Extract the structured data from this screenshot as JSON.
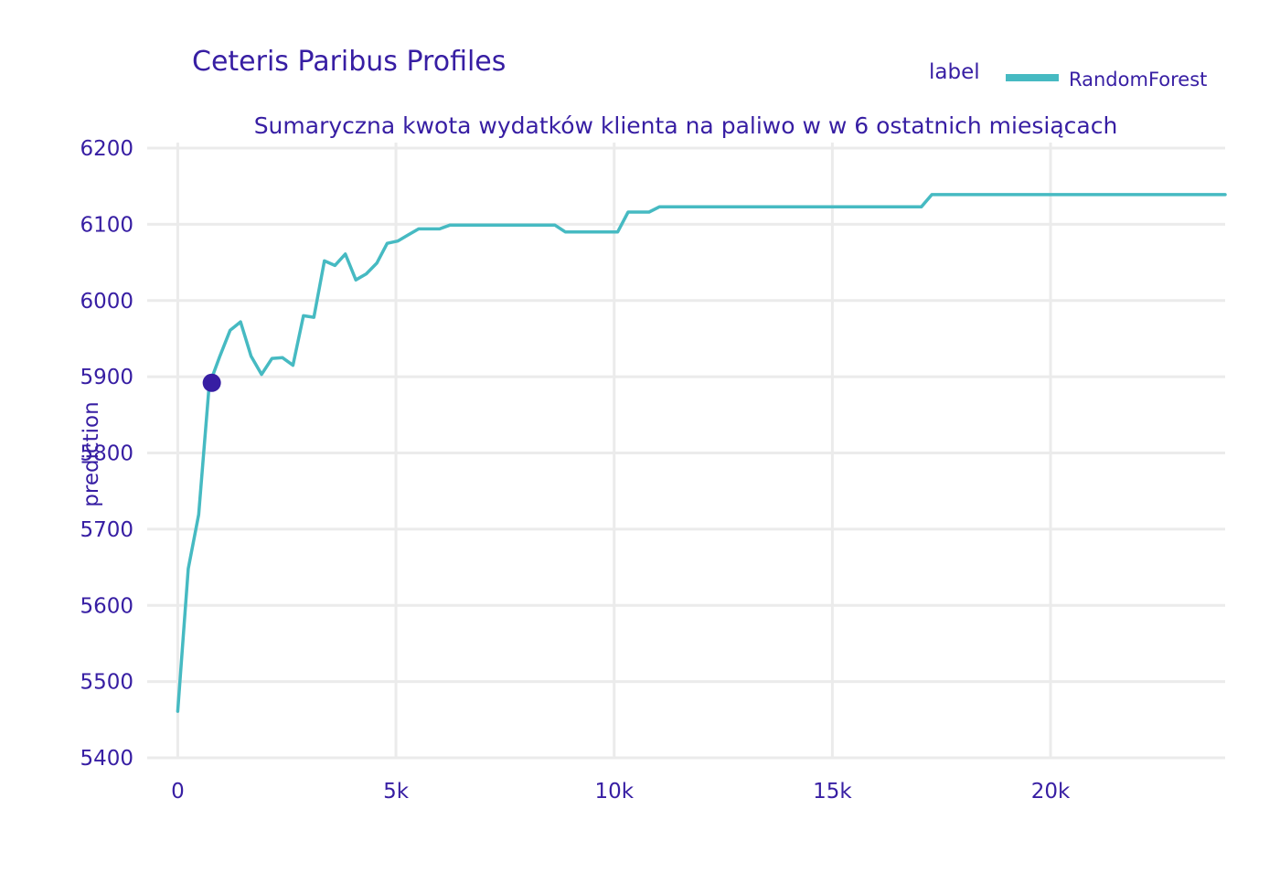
{
  "chart_data": {
    "type": "line",
    "title": "Ceteris Paribus Profiles",
    "subtitle": "Sumaryczna kwota wydatków klienta na paliwo w w 6 ostatnich miesiącach",
    "ylabel": "prediction",
    "xlabel": "",
    "xlim": [
      -700,
      24000
    ],
    "ylim": [
      5400,
      6200
    ],
    "x_ticks": [
      {
        "value": 0,
        "label": "0"
      },
      {
        "value": 5000,
        "label": "5k"
      },
      {
        "value": 10000,
        "label": "10k"
      },
      {
        "value": 15000,
        "label": "15k"
      },
      {
        "value": 20000,
        "label": "20k"
      }
    ],
    "y_ticks": [
      {
        "value": 5400,
        "label": "5400"
      },
      {
        "value": 5500,
        "label": "5500"
      },
      {
        "value": 5600,
        "label": "5600"
      },
      {
        "value": 5700,
        "label": "5700"
      },
      {
        "value": 5800,
        "label": "5800"
      },
      {
        "value": 5900,
        "label": "5900"
      },
      {
        "value": 6000,
        "label": "6000"
      },
      {
        "value": 6100,
        "label": "6100"
      },
      {
        "value": 6200,
        "label": "6200"
      }
    ],
    "grid": true,
    "legend": {
      "title": "label",
      "placement": "top-right"
    },
    "series": [
      {
        "name": "RandomForest",
        "color": "#46bac2",
        "x": [
          0,
          240,
          480,
          720,
          960,
          1200,
          1440,
          1680,
          1920,
          2160,
          2400,
          2640,
          2880,
          3120,
          3360,
          3600,
          3840,
          4080,
          4320,
          4560,
          4800,
          5040,
          5280,
          5520,
          5760,
          6000,
          6240,
          6480,
          8640,
          8880,
          9120,
          9840,
          10080,
          10320,
          10560,
          10800,
          11040,
          11280,
          17040,
          17280,
          18000,
          24000
        ],
        "y": [
          5461,
          5648,
          5719,
          5889,
          5926,
          5961,
          5972,
          5927,
          5903,
          5924,
          5925,
          5915,
          5980,
          5978,
          6052,
          6046,
          6061,
          6027,
          6035,
          6049,
          6075,
          6078,
          6086,
          6094,
          6094,
          6094,
          6099,
          6099,
          6099,
          6090,
          6090,
          6090,
          6090,
          6116,
          6116,
          6116,
          6123,
          6123,
          6123,
          6139,
          6139,
          6139
        ]
      }
    ],
    "observation": {
      "x": 780,
      "y": 5892,
      "color": "#371ea3"
    }
  }
}
